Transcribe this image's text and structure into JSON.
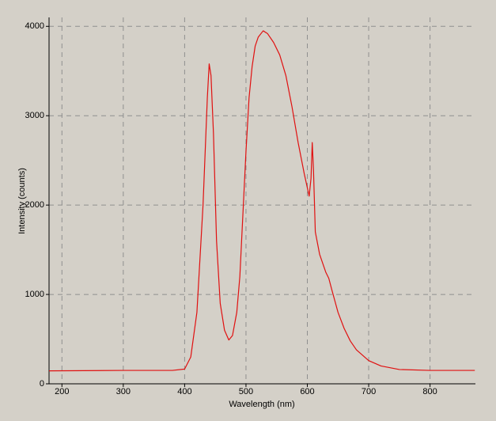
{
  "chart_data": {
    "type": "line",
    "x_label": "Wavelength (nm)",
    "y_label": "Intensity (counts)",
    "x": [
      179,
      300,
      380,
      400,
      410,
      420,
      430,
      437,
      440,
      443,
      447,
      452,
      458,
      465,
      472,
      478,
      485,
      490,
      495,
      500,
      505,
      510,
      515,
      520,
      528,
      535,
      545,
      555,
      565,
      575,
      585,
      595,
      603,
      606,
      608,
      610,
      613,
      620,
      630,
      635,
      640,
      650,
      660,
      670,
      680,
      700,
      720,
      750,
      800,
      873
    ],
    "values": [
      145,
      150,
      150,
      165,
      300,
      800,
      2000,
      3200,
      3580,
      3450,
      2800,
      1600,
      900,
      600,
      490,
      540,
      800,
      1200,
      1900,
      2600,
      3200,
      3550,
      3780,
      3880,
      3950,
      3920,
      3820,
      3680,
      3450,
      3100,
      2700,
      2350,
      2100,
      2300,
      2700,
      2400,
      1700,
      1450,
      1250,
      1180,
      1050,
      800,
      620,
      480,
      380,
      260,
      200,
      160,
      150,
      150
    ],
    "color": "#e01010",
    "xlim": [
      179,
      874
    ],
    "xticks": [
      200,
      300,
      400,
      500,
      600,
      700,
      800
    ],
    "ylim": [
      0,
      4100
    ],
    "yticks": [
      0,
      1000,
      2000,
      3000,
      4000
    ],
    "grid": true
  }
}
